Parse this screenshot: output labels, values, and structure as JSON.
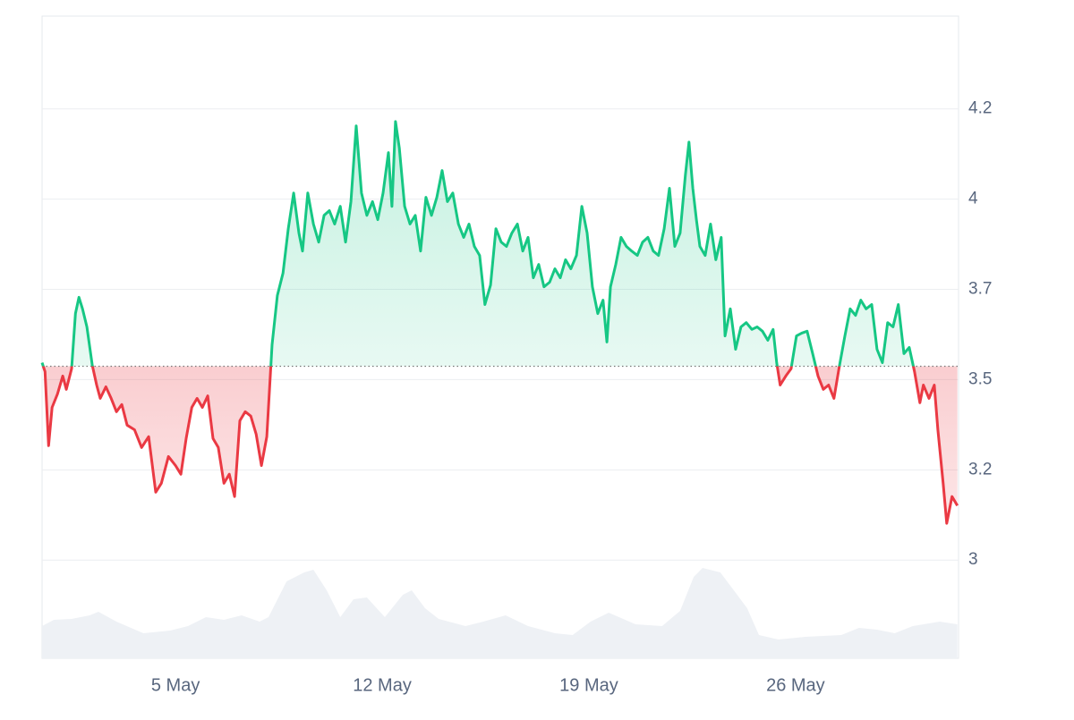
{
  "chart_data": {
    "type": "line",
    "xlim": [
      0.48,
      31.52
    ],
    "ylim": [
      2.728,
      4.507
    ],
    "yticks": [
      3.0,
      {
        "value": 3.25,
        "label": "3.2"
      },
      3.5,
      {
        "value": 3.75,
        "label": "3.7"
      },
      4.0,
      {
        "value": 4.25,
        "label": "4.2"
      }
    ],
    "xticks": [
      {
        "value": 5,
        "label": "5 May"
      },
      {
        "value": 12,
        "label": "12 May"
      },
      {
        "value": 19,
        "label": "19 May"
      },
      {
        "value": 26,
        "label": "26 May"
      }
    ],
    "grid": true,
    "baseline": 3.537,
    "colors": {
      "up": "#16c784",
      "down": "#ea3943",
      "volume": "#eef1f5"
    },
    "x": [
      0.48,
      0.58,
      0.7,
      0.82,
      1.0,
      1.18,
      1.3,
      1.48,
      1.61,
      1.73,
      1.85,
      2.0,
      2.18,
      2.33,
      2.45,
      2.64,
      2.82,
      3.0,
      3.18,
      3.36,
      3.61,
      3.85,
      4.09,
      4.33,
      4.52,
      4.76,
      5.0,
      5.18,
      5.36,
      5.55,
      5.73,
      5.91,
      6.09,
      6.27,
      6.45,
      6.64,
      6.82,
      7.0,
      7.18,
      7.36,
      7.55,
      7.73,
      7.91,
      8.09,
      8.27,
      8.45,
      8.64,
      8.82,
      9.0,
      9.18,
      9.3,
      9.48,
      9.67,
      9.85,
      10.03,
      10.21,
      10.39,
      10.58,
      10.76,
      10.94,
      11.12,
      11.3,
      11.48,
      11.67,
      11.85,
      12.03,
      12.21,
      12.33,
      12.45,
      12.58,
      12.76,
      12.94,
      13.12,
      13.3,
      13.48,
      13.67,
      13.85,
      14.03,
      14.21,
      14.39,
      14.58,
      14.76,
      14.94,
      15.12,
      15.3,
      15.48,
      15.67,
      15.85,
      16.03,
      16.21,
      16.39,
      16.58,
      16.76,
      16.94,
      17.12,
      17.3,
      17.48,
      17.67,
      17.85,
      18.03,
      18.21,
      18.39,
      18.58,
      18.76,
      18.94,
      19.12,
      19.3,
      19.48,
      19.61,
      19.73,
      19.91,
      20.09,
      20.27,
      20.45,
      20.64,
      20.82,
      21.0,
      21.18,
      21.36,
      21.55,
      21.73,
      21.91,
      22.09,
      22.27,
      22.39,
      22.52,
      22.64,
      22.76,
      22.94,
      23.12,
      23.3,
      23.48,
      23.61,
      23.79,
      23.97,
      24.15,
      24.33,
      24.52,
      24.7,
      24.88,
      25.06,
      25.24,
      25.36,
      25.48,
      25.67,
      25.85,
      26.03,
      26.21,
      26.39,
      26.58,
      26.76,
      26.94,
      27.12,
      27.3,
      27.48,
      27.67,
      27.85,
      28.03,
      28.21,
      28.39,
      28.58,
      28.76,
      28.94,
      29.12,
      29.3,
      29.48,
      29.67,
      29.85,
      30.03,
      30.21,
      30.33,
      30.52,
      30.7,
      30.82,
      31.0,
      31.12,
      31.3,
      31.48
    ],
    "values": [
      3.547,
      3.522,
      3.317,
      3.423,
      3.46,
      3.51,
      3.473,
      3.53,
      3.683,
      3.728,
      3.696,
      3.646,
      3.54,
      3.485,
      3.448,
      3.48,
      3.448,
      3.411,
      3.431,
      3.374,
      3.361,
      3.312,
      3.342,
      3.188,
      3.213,
      3.287,
      3.262,
      3.238,
      3.337,
      3.423,
      3.448,
      3.423,
      3.455,
      3.337,
      3.312,
      3.213,
      3.238,
      3.176,
      3.386,
      3.411,
      3.399,
      3.349,
      3.262,
      3.342,
      3.597,
      3.733,
      3.795,
      3.918,
      4.017,
      3.906,
      3.856,
      4.017,
      3.931,
      3.881,
      3.955,
      3.968,
      3.931,
      3.98,
      3.881,
      3.993,
      4.203,
      4.017,
      3.955,
      3.993,
      3.943,
      4.017,
      4.129,
      3.98,
      4.215,
      4.141,
      3.98,
      3.931,
      3.955,
      3.856,
      4.005,
      3.955,
      4.005,
      4.079,
      3.993,
      4.017,
      3.931,
      3.894,
      3.931,
      3.869,
      3.844,
      3.708,
      3.762,
      3.918,
      3.881,
      3.869,
      3.906,
      3.931,
      3.856,
      3.894,
      3.782,
      3.819,
      3.757,
      3.77,
      3.807,
      3.782,
      3.832,
      3.807,
      3.844,
      3.98,
      3.906,
      3.757,
      3.683,
      3.72,
      3.604,
      3.757,
      3.819,
      3.894,
      3.869,
      3.856,
      3.844,
      3.881,
      3.894,
      3.856,
      3.844,
      3.918,
      4.03,
      3.869,
      3.906,
      4.067,
      4.158,
      4.03,
      3.943,
      3.869,
      3.844,
      3.931,
      3.832,
      3.894,
      3.621,
      3.696,
      3.584,
      3.646,
      3.658,
      3.639,
      3.646,
      3.634,
      3.609,
      3.639,
      3.547,
      3.485,
      3.51,
      3.53,
      3.621,
      3.629,
      3.634,
      3.572,
      3.51,
      3.473,
      3.485,
      3.448,
      3.535,
      3.621,
      3.696,
      3.678,
      3.72,
      3.696,
      3.708,
      3.584,
      3.547,
      3.658,
      3.646,
      3.708,
      3.572,
      3.589,
      3.522,
      3.436,
      3.485,
      3.448,
      3.485,
      3.361,
      3.213,
      3.102,
      3.176,
      3.151
    ],
    "volume": {
      "ylim": [
        0,
        110
      ],
      "x": [
        0.48,
        0.88,
        1.48,
        2.09,
        2.39,
        3.0,
        3.91,
        4.82,
        5.42,
        6.03,
        6.64,
        7.24,
        7.85,
        8.15,
        8.76,
        9.36,
        9.67,
        10.12,
        10.58,
        11.03,
        11.48,
        12.09,
        12.7,
        13.0,
        13.45,
        13.91,
        14.82,
        15.42,
        16.18,
        16.94,
        17.85,
        18.45,
        19.06,
        19.67,
        20.58,
        21.48,
        22.09,
        22.55,
        22.85,
        23.45,
        23.91,
        24.36,
        24.76,
        25.42,
        26.33,
        27.55,
        28.15,
        28.76,
        29.36,
        29.97,
        30.88,
        31.48
      ],
      "values": [
        36,
        43,
        44,
        48,
        52,
        41,
        28,
        31,
        36,
        46,
        43,
        48,
        41,
        46,
        86,
        96,
        99,
        76,
        46,
        66,
        68,
        46,
        71,
        76,
        56,
        44,
        36,
        41,
        48,
        36,
        28,
        26,
        41,
        51,
        38,
        36,
        53,
        91,
        101,
        96,
        76,
        56,
        26,
        21,
        24,
        26,
        34,
        32,
        28,
        36,
        41,
        38
      ]
    }
  }
}
